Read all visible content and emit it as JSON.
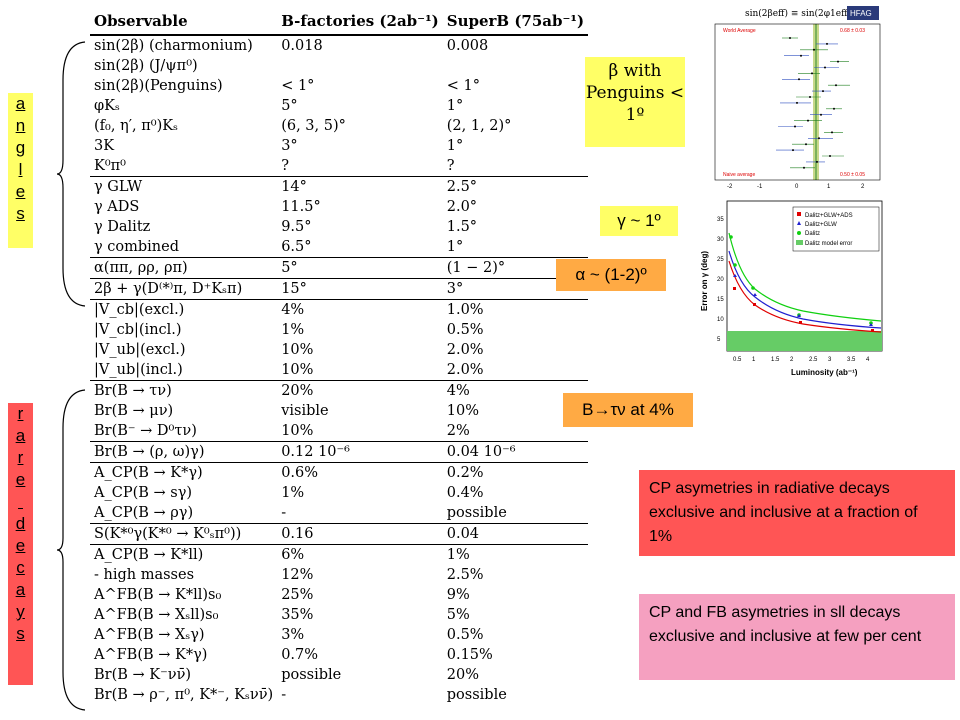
{
  "table": {
    "headers": [
      "Observable",
      "B-factories (2ab⁻¹)",
      "SuperB (75ab⁻¹)"
    ],
    "rows": [
      {
        "obs": "sin(2β) (charmonium)",
        "bf": "0.018",
        "sb": "0.008",
        "sep": false
      },
      {
        "obs": "sin(2β) (J/ψπ⁰)",
        "bf": "",
        "sb": "",
        "sep": false
      },
      {
        "obs": "sin(2β)(Penguins)",
        "bf": "< 1°",
        "sb": "< 1°",
        "sep": false
      },
      {
        "obs": "φKₛ",
        "bf": "5°",
        "sb": "1°",
        "sep": false
      },
      {
        "obs": "(f₀, η′, π⁰)Kₛ",
        "bf": "(6, 3, 5)°",
        "sb": "(2, 1, 2)°",
        "sep": false
      },
      {
        "obs": "3K",
        "bf": "3°",
        "sb": "1°",
        "sep": false
      },
      {
        "obs": "K⁰π⁰",
        "bf": "?",
        "sb": "?",
        "sep": false
      },
      {
        "obs": "γ GLW",
        "bf": "14°",
        "sb": "2.5°",
        "sep": true
      },
      {
        "obs": "γ ADS",
        "bf": "11.5°",
        "sb": "2.0°",
        "sep": false
      },
      {
        "obs": "γ Dalitz",
        "bf": "9.5°",
        "sb": "1.5°",
        "sep": false
      },
      {
        "obs": "γ combined",
        "bf": "6.5°",
        "sb": "1°",
        "sep": false
      },
      {
        "obs": "α(ππ, ρρ, ρπ)",
        "bf": "5°",
        "sb": "(1 − 2)°",
        "sep": true
      },
      {
        "obs": "2β + γ(D⁽*⁾π, D⁺Kₛπ)",
        "bf": "15°",
        "sb": "3°",
        "sep": true
      },
      {
        "obs": "|V_cb|(excl.)",
        "bf": "4%",
        "sb": "1.0%",
        "sep": true
      },
      {
        "obs": "|V_cb|(incl.)",
        "bf": "1%",
        "sb": "0.5%",
        "sep": false
      },
      {
        "obs": "|V_ub|(excl.)",
        "bf": "10%",
        "sb": "2.0%",
        "sep": false
      },
      {
        "obs": "|V_ub|(incl.)",
        "bf": "10%",
        "sb": "2.0%",
        "sep": false
      },
      {
        "obs": "Br(B → τν)",
        "bf": "20%",
        "sb": "4%",
        "sep": true
      },
      {
        "obs": "Br(B → μν)",
        "bf": "visible",
        "sb": "10%",
        "sep": false
      },
      {
        "obs": "Br(B⁻ → D⁰τν)",
        "bf": "10%",
        "sb": "2%",
        "sep": false
      },
      {
        "obs": "Br(B → (ρ, ω)γ)",
        "bf": "0.12 10⁻⁶",
        "sb": "0.04 10⁻⁶",
        "sep": true
      },
      {
        "obs": "A_CP(B → K*γ)",
        "bf": "0.6%",
        "sb": "0.2%",
        "sep": true
      },
      {
        "obs": "A_CP(B → sγ)",
        "bf": "1%",
        "sb": "0.4%",
        "sep": false
      },
      {
        "obs": "A_CP(B → ργ)",
        "bf": "-",
        "sb": "possible",
        "sep": false
      },
      {
        "obs": "S(K*⁰γ(K*⁰ → K⁰ₛπ⁰))",
        "bf": "0.16",
        "sb": "0.04",
        "sep": true
      },
      {
        "obs": "A_CP(B → K*ll)",
        "bf": "6%",
        "sb": "1%",
        "sep": true
      },
      {
        "obs": "- high masses",
        "bf": "12%",
        "sb": "2.5%",
        "sep": false
      },
      {
        "obs": "A^FB(B → K*ll)s₀",
        "bf": "25%",
        "sb": "9%",
        "sep": false
      },
      {
        "obs": "A^FB(B → Xₛll)s₀",
        "bf": "35%",
        "sb": "5%",
        "sep": false
      },
      {
        "obs": "A^FB(B → Xₛγ)",
        "bf": "3%",
        "sb": "0.5%",
        "sep": false
      },
      {
        "obs": "A^FB(B → K*γ)",
        "bf": "0.7%",
        "sb": "0.15%",
        "sep": false
      },
      {
        "obs": "Br(B → K⁻νν̄)",
        "bf": "possible",
        "sb": "20%",
        "sep": false
      },
      {
        "obs": "Br(B → ρ⁻, π⁰, K*⁻, Kₛνν̄)",
        "bf": "-",
        "sb": "possible",
        "sep": false
      }
    ]
  },
  "labels": {
    "angles": "angles",
    "rare_decays": "rare decays"
  },
  "notes": {
    "beta": "β with Penguins < 1º",
    "gamma": "γ ~ 1º",
    "alpha": "α ~ (1-2)º",
    "btau": "B→τν at 4%",
    "cp_radiative": "CP asymetries in radiative decays exclusive and inclusive at a fraction of 1%",
    "cp_fb": "CP and FB asymetries in sll decays exclusive and inclusive at few per cent"
  },
  "hfag_plot": {
    "title": "sin(2βeff) ≡ sin(2φ1eff)",
    "badge": "HFAG",
    "first_entry": "World Average",
    "first_value": "0.68 ± 0.03",
    "last_entry": "Naive average",
    "last_value": "0.50 ± 0.05"
  },
  "gamma_plot": {
    "ylabel": "Error on γ (deg)",
    "xlabel": "Luminosity (ab⁻¹)",
    "legend": [
      "Dalitz+GLW+ADS",
      "Dalitz+GLW",
      "Dalitz",
      "Dalitz model error"
    ],
    "x_ticks": [
      "0.5",
      "1",
      "1.5",
      "2",
      "2.5",
      "3",
      "3.5",
      "4"
    ],
    "y_ticks": [
      "5",
      "10",
      "15",
      "20",
      "25",
      "30",
      "35"
    ],
    "colors": {
      "ads": "#e00000",
      "glw": "#2020d0",
      "dalitz": "#10d010",
      "model": "#66cc66"
    }
  }
}
